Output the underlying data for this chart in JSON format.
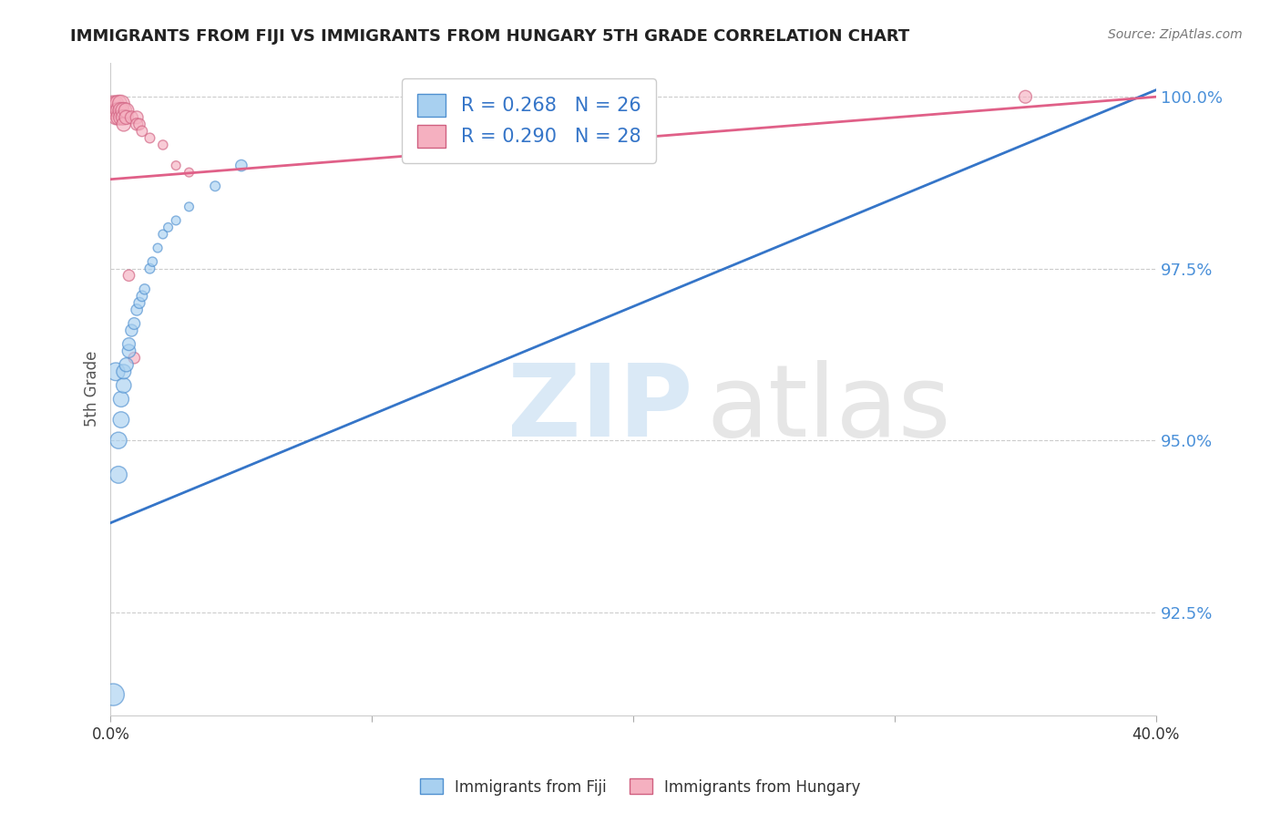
{
  "title": "IMMIGRANTS FROM FIJI VS IMMIGRANTS FROM HUNGARY 5TH GRADE CORRELATION CHART",
  "source_text": "Source: ZipAtlas.com",
  "ylabel": "5th Grade",
  "xlim": [
    0.0,
    0.4
  ],
  "ylim": [
    0.91,
    1.005
  ],
  "xtick_vals": [
    0.0,
    0.1,
    0.2,
    0.3,
    0.4
  ],
  "xtick_labels": [
    "0.0%",
    "",
    "",
    "",
    "40.0%"
  ],
  "ytick_vals": [
    0.925,
    0.95,
    0.975,
    1.0
  ],
  "ytick_labels": [
    "92.5%",
    "95.0%",
    "97.5%",
    "100.0%"
  ],
  "fiji_color": "#A8D0F0",
  "fiji_edge_color": "#5090D0",
  "hungary_color": "#F5B0C0",
  "hungary_edge_color": "#D06080",
  "fiji_R": 0.268,
  "fiji_N": 26,
  "hungary_R": 0.29,
  "hungary_N": 28,
  "fiji_line_color": "#3575C8",
  "hungary_line_color": "#E06088",
  "fiji_line_x0": 0.0,
  "fiji_line_y0": 0.938,
  "fiji_line_x1": 0.4,
  "fiji_line_y1": 1.001,
  "hungary_line_x0": 0.0,
  "hungary_line_y0": 0.988,
  "hungary_line_x1": 0.4,
  "hungary_line_y1": 1.0,
  "fiji_scatter_x": [
    0.001,
    0.002,
    0.003,
    0.003,
    0.004,
    0.004,
    0.005,
    0.005,
    0.006,
    0.007,
    0.007,
    0.008,
    0.009,
    0.01,
    0.011,
    0.012,
    0.013,
    0.015,
    0.016,
    0.018,
    0.02,
    0.022,
    0.025,
    0.03,
    0.04,
    0.05
  ],
  "fiji_scatter_y": [
    0.913,
    0.96,
    0.945,
    0.95,
    0.953,
    0.956,
    0.958,
    0.96,
    0.961,
    0.963,
    0.964,
    0.966,
    0.967,
    0.969,
    0.97,
    0.971,
    0.972,
    0.975,
    0.976,
    0.978,
    0.98,
    0.981,
    0.982,
    0.984,
    0.987,
    0.99
  ],
  "hungary_scatter_x": [
    0.001,
    0.001,
    0.002,
    0.002,
    0.002,
    0.003,
    0.003,
    0.003,
    0.004,
    0.004,
    0.004,
    0.005,
    0.005,
    0.005,
    0.006,
    0.006,
    0.007,
    0.008,
    0.009,
    0.01,
    0.01,
    0.011,
    0.012,
    0.015,
    0.02,
    0.025,
    0.03,
    0.35
  ],
  "hungary_scatter_y": [
    0.998,
    0.999,
    0.999,
    0.998,
    0.997,
    0.999,
    0.998,
    0.997,
    0.999,
    0.998,
    0.997,
    0.998,
    0.997,
    0.996,
    0.998,
    0.997,
    0.974,
    0.997,
    0.962,
    0.997,
    0.996,
    0.996,
    0.995,
    0.994,
    0.993,
    0.99,
    0.989,
    1.0
  ],
  "fiji_marker_sizes": [
    300,
    200,
    180,
    170,
    160,
    150,
    140,
    130,
    120,
    110,
    100,
    90,
    85,
    80,
    75,
    70,
    65,
    60,
    55,
    50,
    50,
    50,
    50,
    50,
    60,
    80
  ],
  "hungary_marker_sizes": [
    180,
    160,
    150,
    140,
    130,
    180,
    160,
    140,
    180,
    160,
    140,
    160,
    140,
    120,
    140,
    120,
    80,
    100,
    80,
    100,
    90,
    80,
    70,
    60,
    55,
    50,
    50,
    100
  ]
}
